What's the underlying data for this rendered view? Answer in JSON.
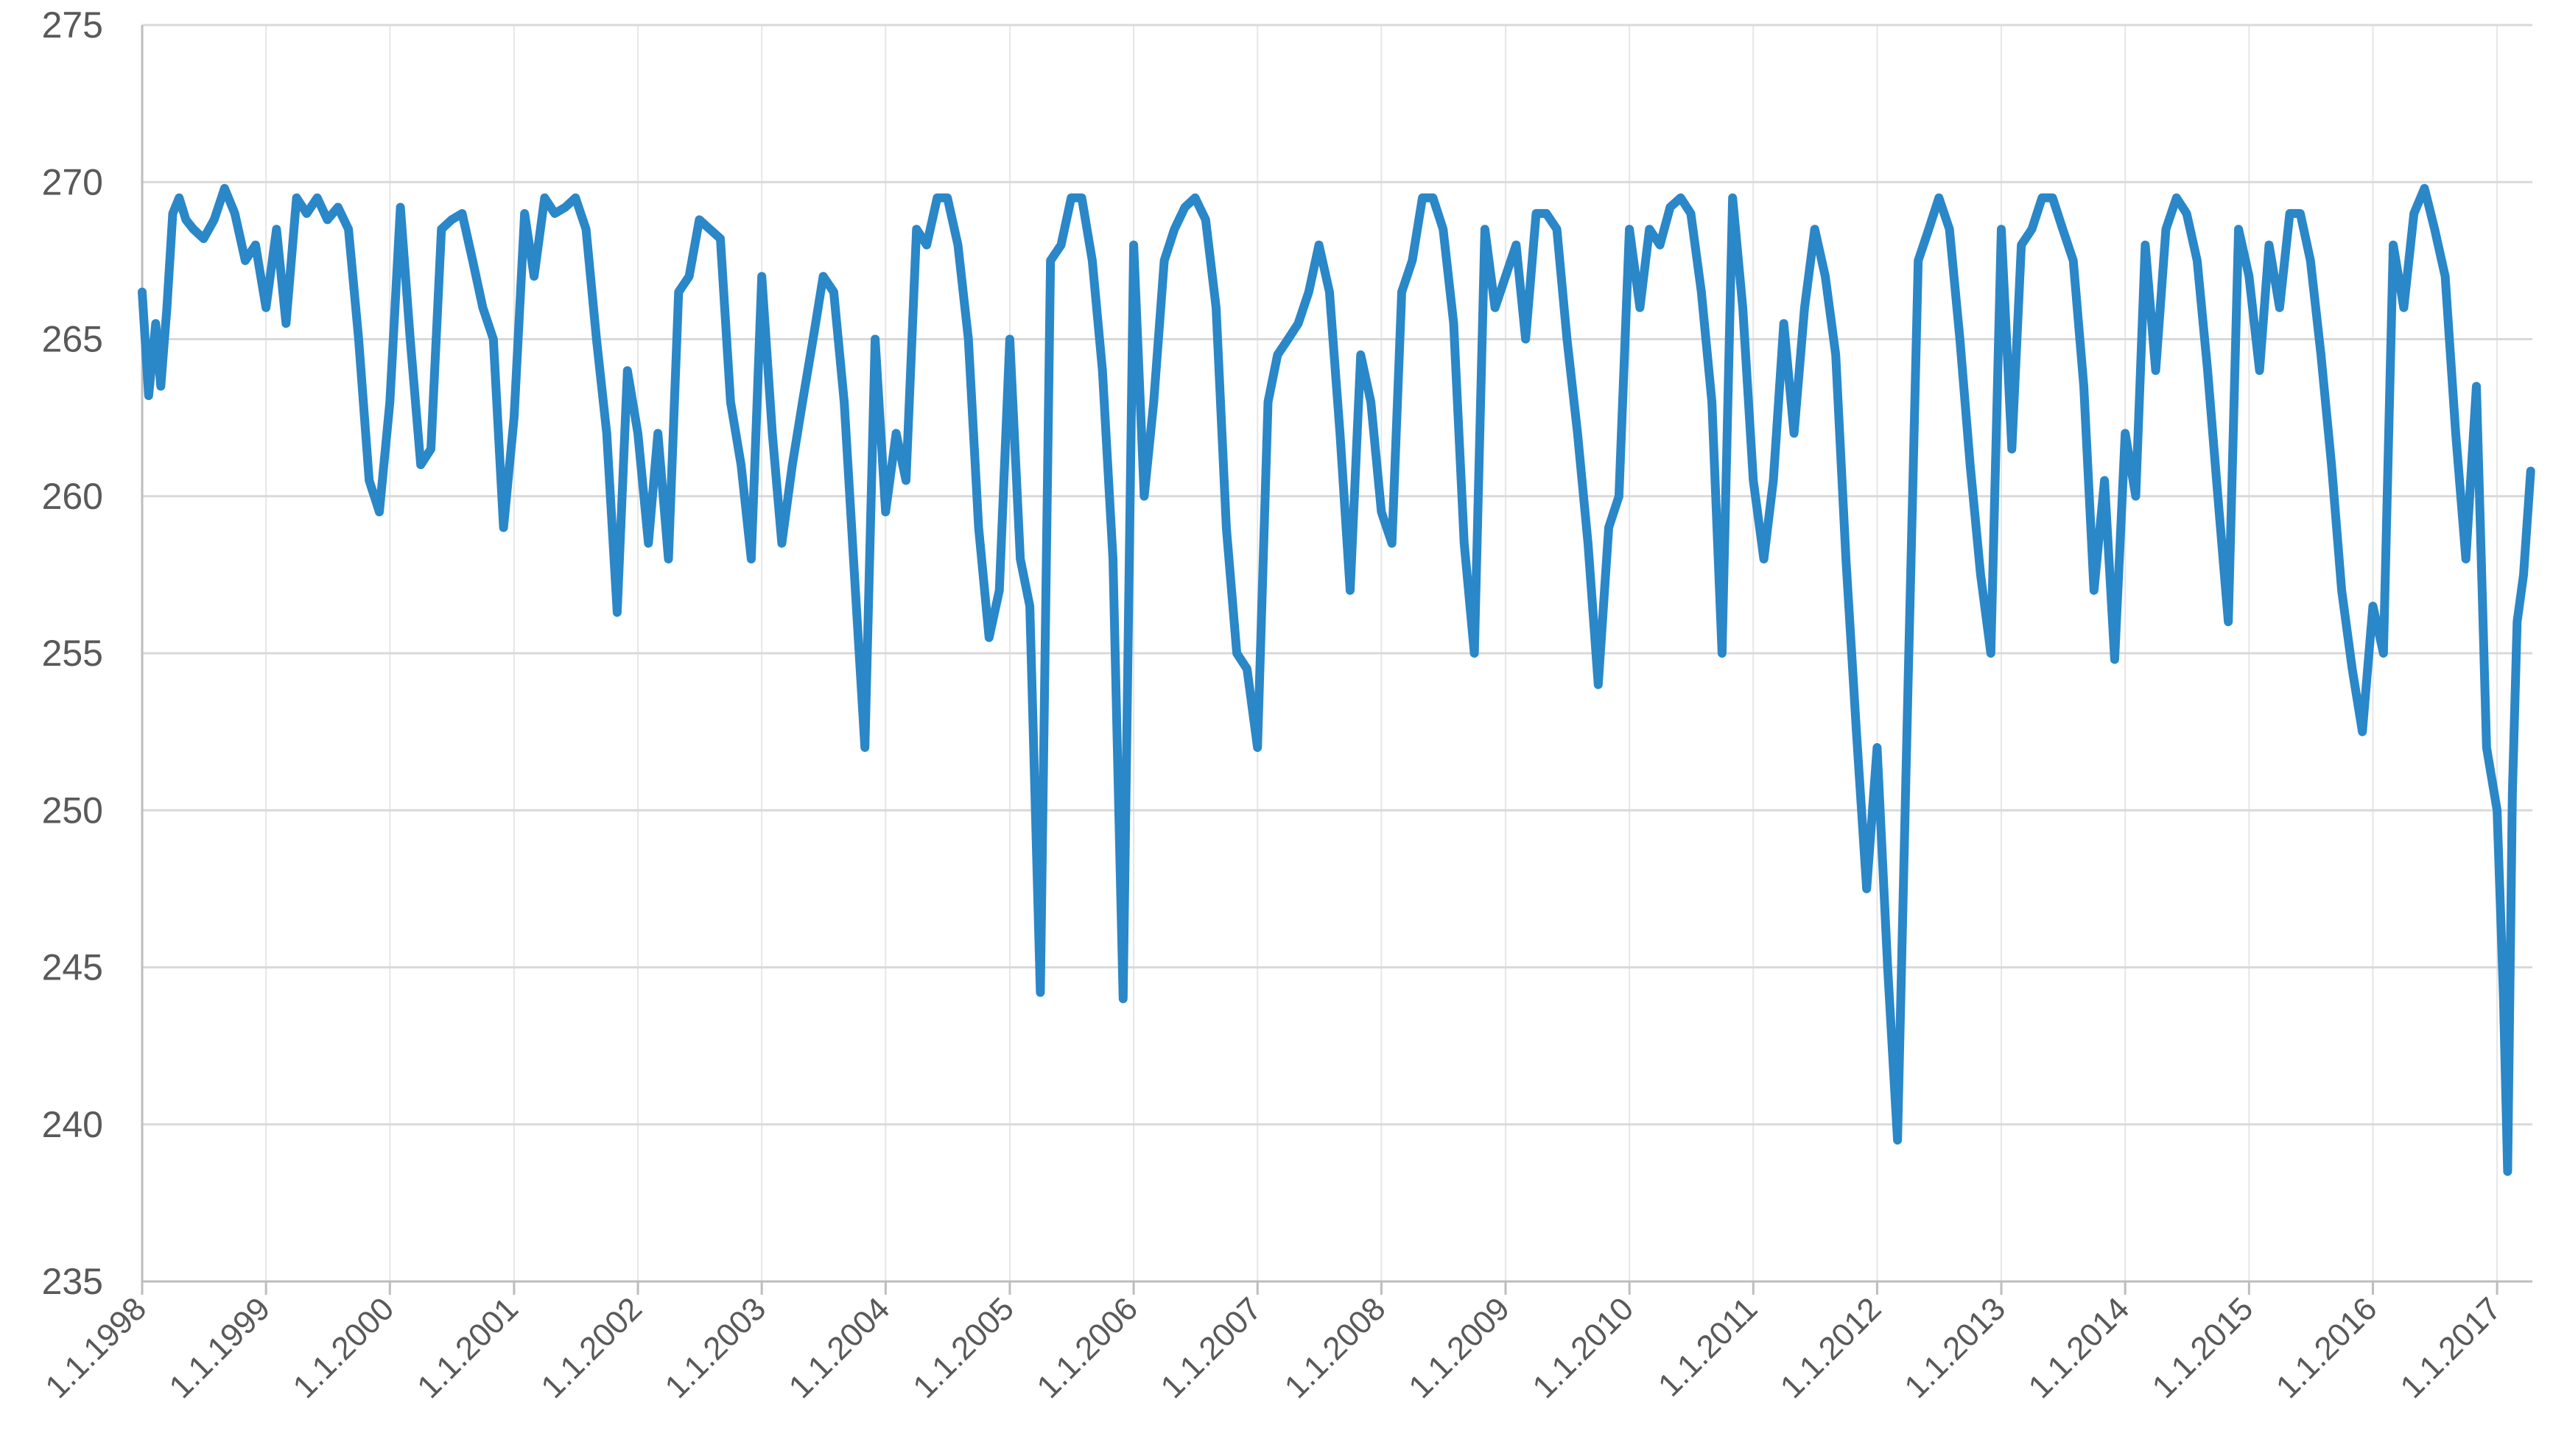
{
  "chart_data": {
    "type": "line",
    "title": "",
    "xlabel": "",
    "ylabel": "",
    "ylim": [
      235,
      275
    ],
    "yticks": [
      235,
      240,
      245,
      250,
      255,
      260,
      265,
      270,
      275
    ],
    "xlim": [
      "1998-01-01",
      "2017-04-15"
    ],
    "xtick_labels": [
      "1.1.1998",
      "1.1.1999",
      "1.1.2000",
      "1.1.2001",
      "1.1.2002",
      "1.1.2003",
      "1.1.2004",
      "1.1.2005",
      "1.1.2006",
      "1.1.2007",
      "1.1.2008",
      "1.1.2009",
      "1.1.2010",
      "1.1.2011",
      "1.1.2012",
      "1.1.2013",
      "1.1.2014",
      "1.1.2015",
      "1.1.2016",
      "1.1.2017"
    ],
    "grid": true,
    "legend": "none",
    "line_color": "#2a87c8",
    "series": [
      {
        "x": [
          "1998-01-01",
          "1998-01-20",
          "1998-02-10",
          "1998-02-25",
          "1998-03-15",
          "1998-04-01",
          "1998-04-20",
          "1998-05-10",
          "1998-06-01",
          "1998-07-01",
          "1998-08-01",
          "1998-09-01",
          "1998-10-01",
          "1998-11-01",
          "1998-12-01",
          "1999-01-01",
          "1999-02-01",
          "1999-03-01",
          "1999-04-01",
          "1999-05-01",
          "1999-06-01",
          "1999-07-01",
          "1999-08-01",
          "1999-09-01",
          "1999-10-01",
          "1999-11-01",
          "1999-12-01",
          "2000-01-01",
          "2000-02-01",
          "2000-03-01",
          "2000-04-01",
          "2000-05-01",
          "2000-06-01",
          "2000-07-01",
          "2000-08-01",
          "2000-09-01",
          "2000-10-01",
          "2000-11-01",
          "2000-12-01",
          "2001-01-01",
          "2001-02-01",
          "2001-03-01",
          "2001-04-01",
          "2001-05-01",
          "2001-06-01",
          "2001-07-01",
          "2001-08-01",
          "2001-09-01",
          "2001-10-01",
          "2001-11-01",
          "2001-12-01",
          "2002-01-01",
          "2002-02-01",
          "2002-03-01",
          "2002-04-01",
          "2002-05-01",
          "2002-06-01",
          "2002-07-01",
          "2002-08-01",
          "2002-09-01",
          "2002-10-01",
          "2002-11-01",
          "2002-12-01",
          "2003-01-01",
          "2003-02-01",
          "2003-03-01",
          "2003-04-01",
          "2003-05-01",
          "2003-06-01",
          "2003-07-01",
          "2003-08-01",
          "2003-09-01",
          "2003-10-01",
          "2003-11-01",
          "2003-12-01",
          "2004-01-01",
          "2004-02-01",
          "2004-03-01",
          "2004-04-01",
          "2004-05-01",
          "2004-06-01",
          "2004-07-01",
          "2004-08-01",
          "2004-09-01",
          "2004-10-01",
          "2004-11-01",
          "2004-12-01",
          "2005-01-01",
          "2005-02-01",
          "2005-03-01",
          "2005-04-01",
          "2005-05-01",
          "2005-06-01",
          "2005-07-01",
          "2005-08-01",
          "2005-09-01",
          "2005-10-01",
          "2005-11-01",
          "2005-12-01",
          "2006-01-01",
          "2006-02-01",
          "2006-03-01",
          "2006-04-01",
          "2006-05-01",
          "2006-06-01",
          "2006-07-01",
          "2006-08-01",
          "2006-09-01",
          "2006-10-01",
          "2006-11-01",
          "2006-12-01",
          "2007-01-01",
          "2007-02-01",
          "2007-03-01",
          "2007-04-01",
          "2007-05-01",
          "2007-06-01",
          "2007-07-01",
          "2007-08-01",
          "2007-09-01",
          "2007-10-01",
          "2007-11-01",
          "2007-12-01",
          "2008-01-01",
          "2008-02-01",
          "2008-03-01",
          "2008-04-01",
          "2008-05-01",
          "2008-06-01",
          "2008-07-01",
          "2008-08-01",
          "2008-09-01",
          "2008-10-01",
          "2008-11-01",
          "2008-12-01",
          "2009-01-01",
          "2009-02-01",
          "2009-03-01",
          "2009-04-01",
          "2009-05-01",
          "2009-06-01",
          "2009-07-01",
          "2009-08-01",
          "2009-09-01",
          "2009-10-01",
          "2009-11-01",
          "2009-12-01",
          "2010-01-01",
          "2010-02-01",
          "2010-03-01",
          "2010-04-01",
          "2010-05-01",
          "2010-06-01",
          "2010-07-01",
          "2010-08-01",
          "2010-09-01",
          "2010-10-01",
          "2010-11-01",
          "2010-12-01",
          "2011-01-01",
          "2011-02-01",
          "2011-03-01",
          "2011-04-01",
          "2011-05-01",
          "2011-06-01",
          "2011-07-01",
          "2011-08-01",
          "2011-09-01",
          "2011-10-01",
          "2011-11-01",
          "2011-12-01",
          "2012-01-01",
          "2012-02-01",
          "2012-03-01",
          "2012-04-01",
          "2012-05-01",
          "2012-06-01",
          "2012-07-01",
          "2012-08-01",
          "2012-09-01",
          "2012-10-01",
          "2012-11-01",
          "2012-12-01",
          "2013-01-01",
          "2013-02-01",
          "2013-03-01",
          "2013-04-01",
          "2013-05-01",
          "2013-06-01",
          "2013-07-01",
          "2013-08-01",
          "2013-09-01",
          "2013-10-01",
          "2013-11-01",
          "2013-12-01",
          "2014-01-01",
          "2014-02-01",
          "2014-03-01",
          "2014-04-01",
          "2014-05-01",
          "2014-06-01",
          "2014-07-01",
          "2014-08-01",
          "2014-09-01",
          "2014-10-01",
          "2014-11-01",
          "2014-12-01",
          "2015-01-01",
          "2015-02-01",
          "2015-03-01",
          "2015-04-01",
          "2015-05-01",
          "2015-06-01",
          "2015-07-01",
          "2015-08-01",
          "2015-09-01",
          "2015-10-01",
          "2015-11-01",
          "2015-12-01",
          "2016-01-01",
          "2016-02-01",
          "2016-03-01",
          "2016-04-01",
          "2016-05-01",
          "2016-06-01",
          "2016-07-01",
          "2016-08-01",
          "2016-09-01",
          "2016-10-01",
          "2016-11-01",
          "2016-12-01",
          "2017-01-01",
          "2017-01-20",
          "2017-02-01",
          "2017-02-15",
          "2017-03-01",
          "2017-03-20",
          "2017-04-10"
        ],
        "y": [
          266.5,
          263.2,
          265.5,
          263.5,
          266.0,
          269.0,
          269.5,
          268.8,
          268.5,
          268.2,
          268.8,
          269.8,
          269.0,
          267.5,
          268.0,
          266.0,
          268.5,
          265.5,
          269.5,
          269.0,
          269.5,
          268.8,
          269.2,
          268.5,
          265.0,
          260.5,
          259.5,
          263.0,
          269.2,
          265.0,
          261.0,
          261.5,
          268.5,
          268.8,
          269.0,
          267.5,
          266.0,
          265.0,
          259.0,
          262.5,
          269.0,
          267.0,
          269.5,
          269.0,
          269.2,
          269.5,
          268.5,
          265.0,
          262.0,
          256.3,
          264.0,
          262.0,
          258.5,
          262.0,
          258.0,
          266.5,
          267.0,
          268.8,
          268.5,
          268.2,
          263.0,
          261.0,
          258.0,
          267.0,
          262.0,
          258.5,
          261.0,
          263.0,
          265.0,
          267.0,
          266.5,
          263.0,
          257.5,
          252.0,
          265.0,
          259.5,
          262.0,
          260.5,
          268.5,
          268.0,
          269.5,
          269.5,
          268.0,
          265.0,
          259.0,
          255.5,
          257.0,
          265.0,
          258.0,
          256.5,
          244.2,
          267.5,
          268.0,
          269.5,
          269.5,
          267.5,
          264.0,
          258.0,
          244.0,
          268.0,
          260.0,
          263.0,
          267.5,
          268.5,
          269.2,
          269.5,
          268.8,
          266.0,
          259.0,
          255.0,
          254.5,
          252.0,
          263.0,
          264.5,
          265.0,
          265.5,
          266.5,
          268.0,
          266.5,
          262.0,
          257.0,
          264.5,
          263.0,
          259.5,
          258.5,
          266.5,
          267.5,
          269.5,
          269.5,
          268.5,
          265.5,
          258.5,
          255.0,
          268.5,
          266.0,
          267.0,
          268.0,
          265.0,
          269.0,
          269.0,
          268.5,
          265.0,
          262.0,
          258.5,
          254.0,
          259.0,
          260.0,
          268.5,
          266.0,
          268.5,
          268.0,
          269.2,
          269.5,
          269.0,
          266.5,
          263.0,
          255.0,
          269.5,
          266.0,
          260.5,
          258.0,
          260.5,
          265.5,
          262.0,
          266.0,
          268.5,
          267.0,
          264.5,
          258.0,
          252.5,
          247.5,
          252.0,
          245.0,
          239.5,
          254.0,
          267.5,
          268.5,
          269.5,
          268.5,
          265.0,
          261.0,
          257.5,
          255.0,
          268.5,
          261.5,
          268.0,
          268.5,
          269.5,
          269.5,
          268.5,
          267.5,
          263.5,
          257.0,
          260.5,
          254.8,
          262.0,
          260.0,
          268.0,
          264.0,
          268.5,
          269.5,
          269.0,
          267.5,
          264.0,
          260.0,
          256.0,
          268.5,
          267.0,
          264.0,
          268.0,
          266.0,
          269.0,
          269.0,
          267.5,
          264.5,
          261.0,
          257.0,
          254.5,
          252.5,
          256.5,
          255.0,
          268.0,
          266.0,
          269.0,
          269.8,
          268.5,
          267.0,
          262.0,
          258.0,
          263.5,
          252.0,
          250.0,
          244.0,
          238.5,
          250.5,
          256.0,
          257.5,
          260.8
        ]
      }
    ]
  }
}
